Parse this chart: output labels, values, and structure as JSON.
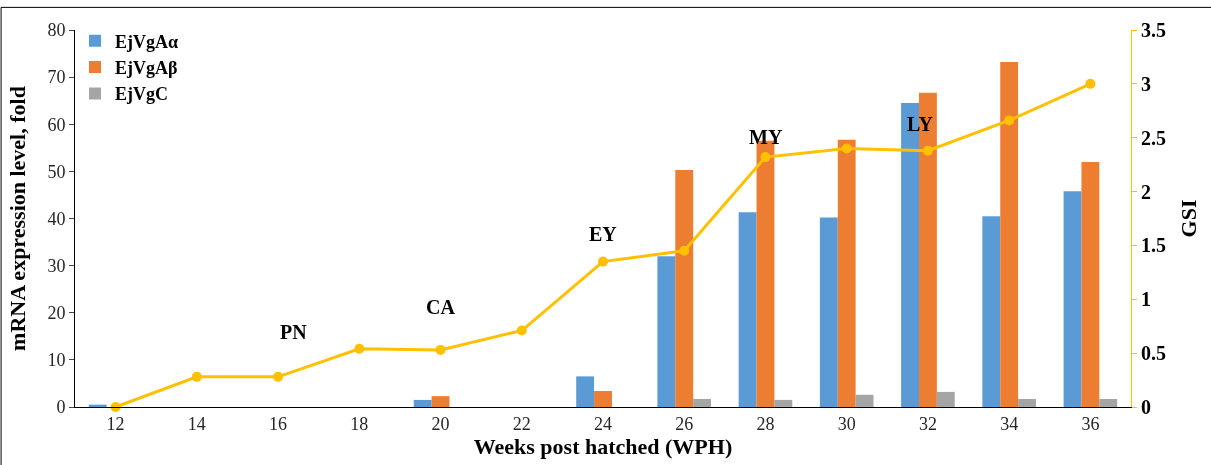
{
  "chart_data": {
    "type": "bar",
    "xlabel": "Weeks post hatched (WPH)",
    "ylabel": "mRNA expression level, fold",
    "y2label": "GSI",
    "categories": [
      "12",
      "14",
      "16",
      "18",
      "20",
      "22",
      "24",
      "26",
      "28",
      "30",
      "32",
      "34",
      "36"
    ],
    "series": [
      {
        "name": "EjVgAα",
        "color": "#5b9bd5",
        "values": [
          0.5,
          0,
          0,
          0,
          1.5,
          0,
          6.5,
          32,
          41.3,
          40.2,
          64.5,
          40.5,
          45.8
        ]
      },
      {
        "name": "EjVgAβ",
        "color": "#ed7d31",
        "values": [
          0,
          0,
          0,
          0,
          2.3,
          0,
          3.4,
          50.3,
          56.5,
          56.7,
          66.7,
          73.2,
          52
        ]
      },
      {
        "name": "EjVgC",
        "color": "#a5a5a5",
        "values": [
          0,
          0,
          0,
          0,
          0,
          0,
          0,
          1.7,
          1.5,
          2.6,
          3.2,
          1.7,
          1.7
        ]
      },
      {
        "type": "line",
        "axis": "y2",
        "color": "#ffc000",
        "marker": "circle",
        "values": [
          0,
          0.28,
          0.28,
          0.54,
          0.53,
          0.71,
          1.35,
          1.45,
          2.32,
          2.4,
          2.38,
          2.66,
          3.0
        ]
      }
    ],
    "ylim": [
      0,
      80
    ],
    "yticks": [
      0,
      10,
      20,
      30,
      40,
      50,
      60,
      70,
      80
    ],
    "y2lim": [
      0,
      3.5
    ],
    "y2ticks": [
      0,
      {
        "value": 0.5,
        "label": "0.5"
      },
      1,
      {
        "value": 1.5,
        "label": "1.5"
      },
      2,
      {
        "value": 2.5,
        "label": "2.5"
      },
      3,
      {
        "value": 3.5,
        "label": "3.5"
      }
    ],
    "annotations": [
      "PN",
      "CA",
      "EY",
      "MY",
      "LY"
    ],
    "legend": "top left"
  }
}
